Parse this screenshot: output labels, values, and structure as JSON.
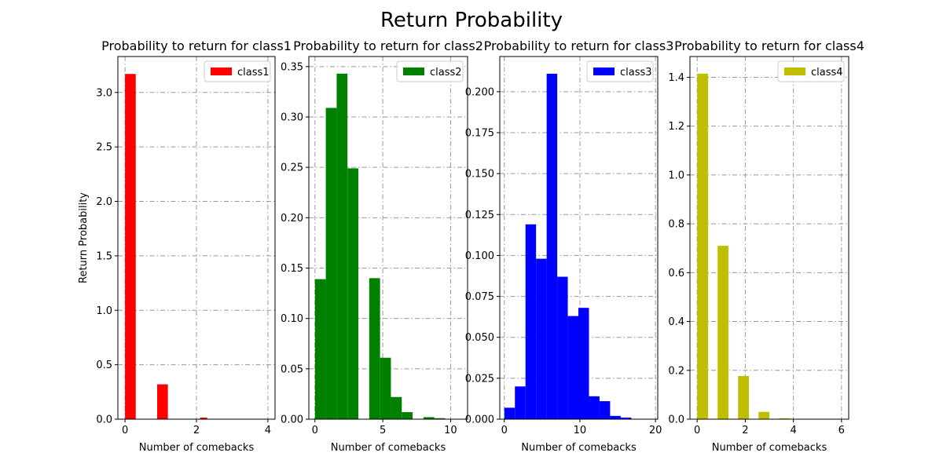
{
  "figure": {
    "title": "Return Probability"
  },
  "chart_data": [
    {
      "type": "bar",
      "title": "Probability to return for class1",
      "xlabel": "Number of comebacks",
      "ylabel": "Return Probability",
      "xlim": [
        -0.2,
        4.2
      ],
      "ylim": [
        0,
        3.33
      ],
      "xticks": [
        0,
        2,
        4
      ],
      "yticks": [
        0.0,
        0.5,
        1.0,
        1.5,
        2.0,
        2.5,
        3.0
      ],
      "grid": true,
      "legend": "top-right",
      "color": "#ff0000",
      "series": [
        {
          "name": "class1",
          "bins": [
            [
              0,
              0.3
            ],
            [
              0.9,
              1.2
            ],
            [
              2.1,
              2.3
            ]
          ],
          "values": [
            3.17,
            0.32,
            0.015
          ]
        }
      ]
    },
    {
      "type": "bar",
      "title": "Probability to return for class2",
      "xlabel": "Number of comebacks",
      "ylabel": "",
      "xlim": [
        -0.45,
        11.25
      ],
      "ylim": [
        0,
        0.36
      ],
      "xticks": [
        0,
        5,
        10
      ],
      "yticks": [
        0.0,
        0.05,
        0.1,
        0.15,
        0.2,
        0.25,
        0.3,
        0.35
      ],
      "grid": true,
      "legend": "top-right",
      "color": "#008000",
      "series": [
        {
          "name": "class2",
          "bins": [
            [
              0,
              0.8
            ],
            [
              0.8,
              1.6
            ],
            [
              1.6,
              2.4
            ],
            [
              2.4,
              3.2
            ],
            [
              4.0,
              4.8
            ],
            [
              4.8,
              5.6
            ],
            [
              5.6,
              6.4
            ],
            [
              6.4,
              7.2
            ],
            [
              8.0,
              8.8
            ],
            [
              8.8,
              9.6
            ]
          ],
          "values": [
            0.139,
            0.309,
            0.343,
            0.249,
            0.14,
            0.061,
            0.022,
            0.007,
            0.002,
            0.001
          ]
        }
      ]
    },
    {
      "type": "bar",
      "title": "Probability to return for class3",
      "xlabel": "Number of comebacks",
      "ylabel": "",
      "xlim": [
        -0.6,
        20.3
      ],
      "ylim": [
        0,
        0.2215
      ],
      "xticks": [
        0,
        10,
        20
      ],
      "yticks": [
        0.0,
        0.025,
        0.05,
        0.075,
        0.1,
        0.125,
        0.15,
        0.175,
        0.2
      ],
      "grid": true,
      "legend": "top-right",
      "color": "#0000ff",
      "series": [
        {
          "name": "class3",
          "bins": [
            [
              0,
              1.4
            ],
            [
              1.4,
              2.8
            ],
            [
              2.8,
              4.2
            ],
            [
              4.2,
              5.6
            ],
            [
              5.6,
              7.0
            ],
            [
              7.0,
              8.4
            ],
            [
              8.4,
              9.8
            ],
            [
              9.8,
              11.2
            ],
            [
              11.2,
              12.6
            ],
            [
              12.6,
              14.0
            ],
            [
              14.0,
              15.4
            ],
            [
              15.4,
              16.8
            ]
          ],
          "values": [
            0.007,
            0.02,
            0.119,
            0.098,
            0.211,
            0.087,
            0.063,
            0.068,
            0.014,
            0.011,
            0.002,
            0.001
          ]
        }
      ]
    },
    {
      "type": "bar",
      "title": "Probability to return for class4",
      "xlabel": "Number of comebacks",
      "ylabel": "",
      "xlim": [
        -0.3,
        6.3
      ],
      "ylim": [
        0,
        1.485
      ],
      "xticks": [
        0,
        2,
        4,
        6
      ],
      "yticks": [
        0.0,
        0.2,
        0.4,
        0.6,
        0.8,
        1.0,
        1.2,
        1.4
      ],
      "grid": true,
      "legend": "top-right",
      "color": "#bfbf00",
      "series": [
        {
          "name": "class4",
          "bins": [
            [
              0,
              0.45
            ],
            [
              0.85,
              1.3
            ],
            [
              1.7,
              2.15
            ],
            [
              2.55,
              3.0
            ],
            [
              3.4,
              3.85
            ]
          ],
          "values": [
            1.415,
            0.71,
            0.177,
            0.03,
            0.004
          ]
        }
      ]
    }
  ]
}
